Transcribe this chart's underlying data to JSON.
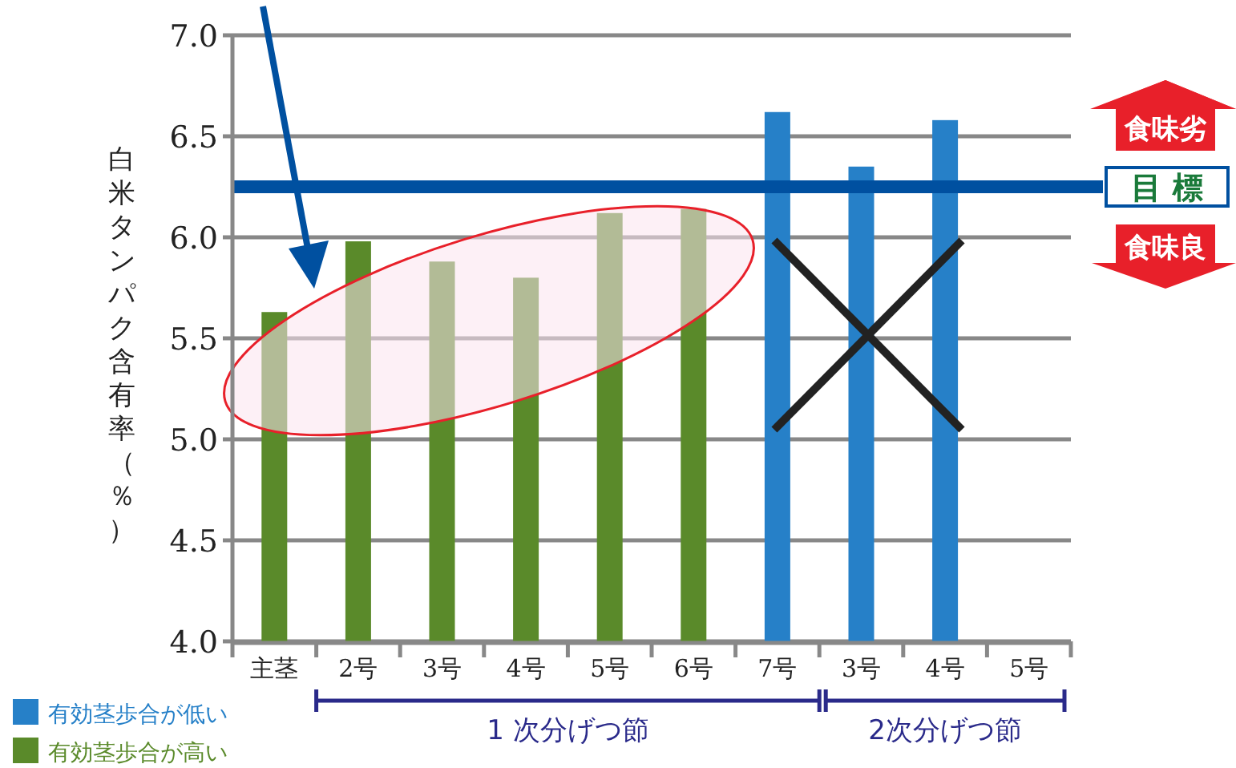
{
  "chart_data": {
    "type": "bar",
    "ylabel": "白米タンパク含有率（％）",
    "categories": [
      "主茎",
      "2号",
      "3号",
      "4号",
      "5号",
      "6号",
      "7号",
      "3号",
      "4号",
      "5号"
    ],
    "series": [
      {
        "name": "有効茎歩合が低い",
        "color": "#2680c8",
        "values": [
          null,
          null,
          null,
          null,
          null,
          null,
          6.62,
          6.35,
          6.58,
          null
        ]
      },
      {
        "name": "有効茎歩合が高い",
        "color": "#5a8a2a",
        "values": [
          5.63,
          5.98,
          5.88,
          5.8,
          6.12,
          6.14,
          null,
          null,
          null,
          null
        ]
      }
    ],
    "ylim": [
      4.0,
      7.0
    ],
    "yticks": [
      {
        "value": 4,
        "label": "4.0"
      },
      {
        "value": 4.5,
        "label": "4.5"
      },
      {
        "value": 5,
        "label": "5.0"
      },
      {
        "value": 5.5,
        "label": "5.5"
      },
      {
        "value": 6,
        "label": "6.0"
      },
      {
        "value": 6.5,
        "label": "6.5"
      },
      {
        "value": 7,
        "label": "7.0"
      }
    ],
    "grid": "y",
    "legend": "bottom left",
    "ref_lines": [
      {
        "axis": "y",
        "value": 6.25,
        "label": "目 標",
        "color": "#0050a0"
      }
    ],
    "annotations": [
      "食味劣",
      "食味良",
      "1 次分げつ節",
      "2次分げつ節"
    ]
  }
}
